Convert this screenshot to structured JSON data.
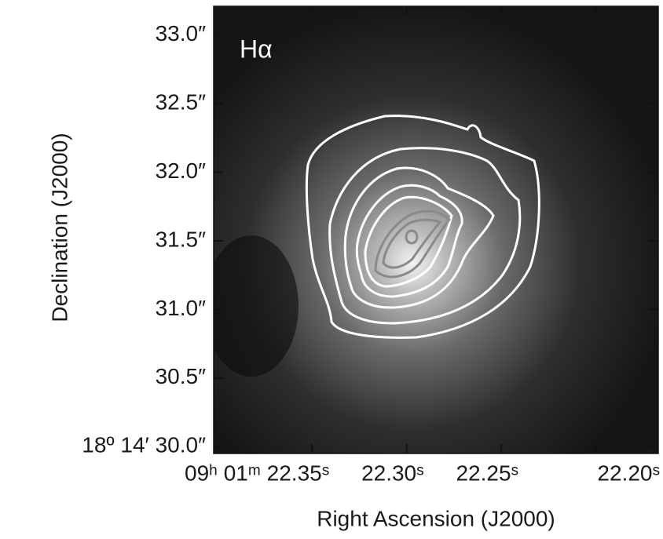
{
  "chart_data": {
    "type": "image",
    "title": "Hα",
    "x_label": "Right Ascension (J2000)",
    "y_label": "Declination (J2000)",
    "xlim": [
      22.402,
      22.167
    ],
    "ylim": [
      29.95,
      33.21
    ],
    "xticks": [
      {
        "value": 22.35,
        "label": "09ʰ 01ᵐ 22.35ˢ"
      },
      {
        "value": 22.3,
        "label": "22.30ˢ"
      },
      {
        "value": 22.25,
        "label": "22.25ˢ"
      },
      {
        "value": 22.2,
        "label": "22.20ˢ"
      }
    ],
    "yticks": [
      {
        "value": 30.0,
        "label": "18º 14′ 30.0″"
      },
      {
        "value": 30.5,
        "label": "30.5″"
      },
      {
        "value": 31.0,
        "label": "31.0″"
      },
      {
        "value": 31.5,
        "label": "31.5″"
      },
      {
        "value": 32.0,
        "label": "32.0″"
      },
      {
        "value": 32.5,
        "label": "32.5″"
      },
      {
        "value": 33.0,
        "label": "33.0″"
      }
    ]
  }
}
